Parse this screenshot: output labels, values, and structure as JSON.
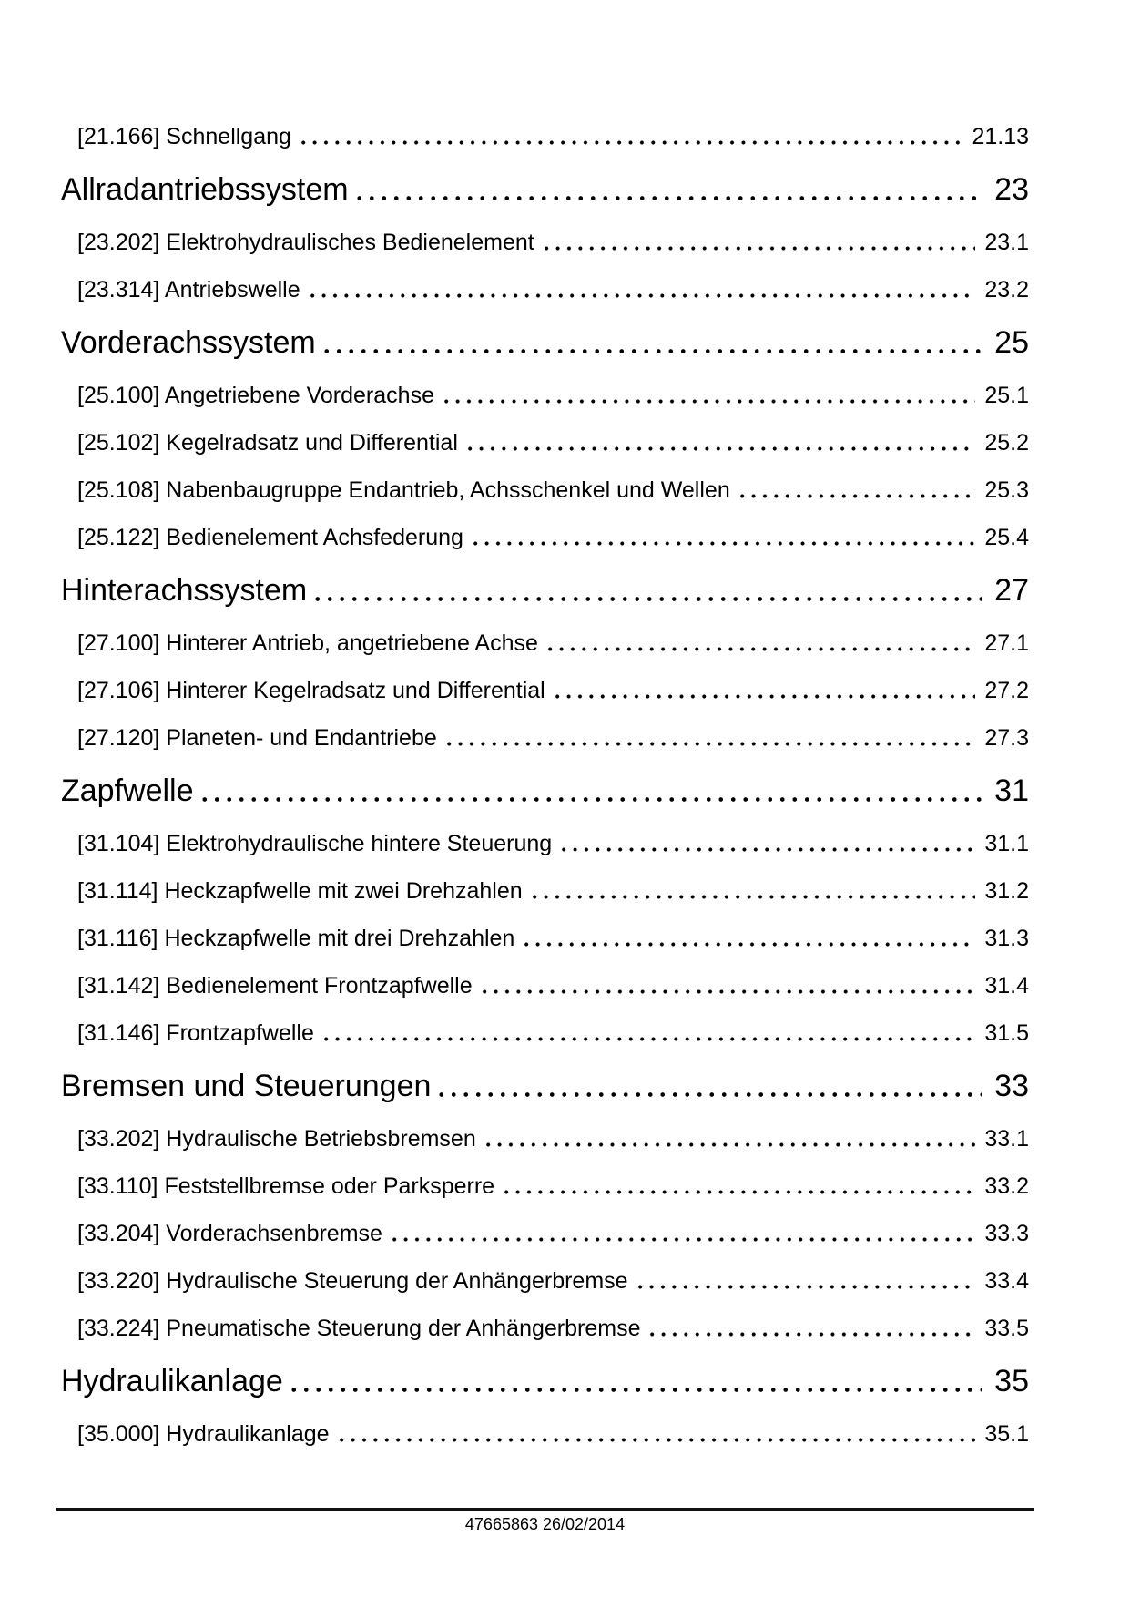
{
  "toc": {
    "items": [
      {
        "level": "section",
        "label": "[21.166] Schnellgang",
        "page": "21.13"
      },
      {
        "level": "chapter",
        "label": "Allradantriebssystem",
        "page": "23"
      },
      {
        "level": "section",
        "label": "[23.202] Elektrohydraulisches Bedienelement",
        "page": "23.1"
      },
      {
        "level": "section",
        "label": "[23.314] Antriebswelle",
        "page": "23.2"
      },
      {
        "level": "chapter",
        "label": "Vorderachssystem",
        "page": "25"
      },
      {
        "level": "section",
        "label": "[25.100] Angetriebene Vorderachse",
        "page": "25.1"
      },
      {
        "level": "section",
        "label": "[25.102] Kegelradsatz und Differential",
        "page": "25.2"
      },
      {
        "level": "section",
        "label": "[25.108] Nabenbaugruppe Endantrieb, Achsschenkel und Wellen",
        "page": "25.3"
      },
      {
        "level": "section",
        "label": "[25.122] Bedienelement Achsfederung",
        "page": "25.4"
      },
      {
        "level": "chapter",
        "label": "Hinterachssystem",
        "page": "27"
      },
      {
        "level": "section",
        "label": "[27.100] Hinterer Antrieb, angetriebene Achse",
        "page": "27.1"
      },
      {
        "level": "section",
        "label": "[27.106] Hinterer Kegelradsatz und Differential",
        "page": "27.2"
      },
      {
        "level": "section",
        "label": "[27.120] Planeten- und Endantriebe",
        "page": "27.3"
      },
      {
        "level": "chapter",
        "label": "Zapfwelle",
        "page": "31"
      },
      {
        "level": "section",
        "label": "[31.104] Elektrohydraulische hintere Steuerung",
        "page": "31.1"
      },
      {
        "level": "section",
        "label": "[31.114] Heckzapfwelle mit zwei Drehzahlen",
        "page": "31.2"
      },
      {
        "level": "section",
        "label": "[31.116] Heckzapfwelle mit drei Drehzahlen",
        "page": "31.3"
      },
      {
        "level": "section",
        "label": "[31.142] Bedienelement Frontzapfwelle",
        "page": "31.4"
      },
      {
        "level": "section",
        "label": "[31.146] Frontzapfwelle",
        "page": "31.5"
      },
      {
        "level": "chapter",
        "label": "Bremsen und Steuerungen",
        "page": "33"
      },
      {
        "level": "section",
        "label": "[33.202] Hydraulische Betriebsbremsen",
        "page": "33.1"
      },
      {
        "level": "section",
        "label": "[33.110] Feststellbremse oder Parksperre",
        "page": "33.2"
      },
      {
        "level": "section",
        "label": "[33.204] Vorderachsenbremse",
        "page": "33.3"
      },
      {
        "level": "section",
        "label": "[33.220] Hydraulische Steuerung der Anhängerbremse",
        "page": "33.4"
      },
      {
        "level": "section",
        "label": "[33.224] Pneumatische Steuerung der Anhängerbremse",
        "page": "33.5"
      },
      {
        "level": "chapter",
        "label": "Hydraulikanlage",
        "page": "35"
      },
      {
        "level": "section",
        "label": "[35.000] Hydraulikanlage",
        "page": "35.1"
      }
    ]
  },
  "footer": {
    "text": "47665863 26/02/2014"
  }
}
